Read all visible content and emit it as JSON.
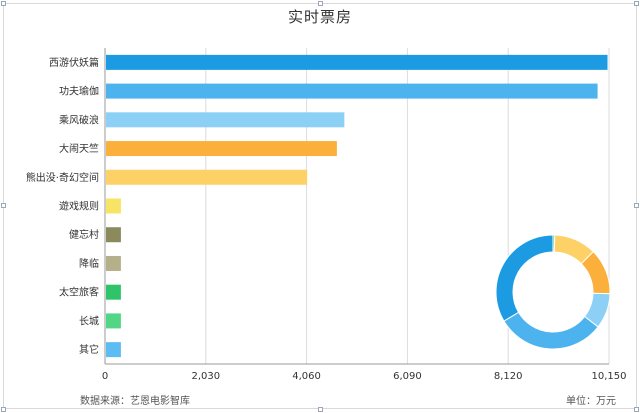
{
  "chart_data": [
    {
      "type": "bar",
      "orientation": "horizontal",
      "title": "实时票房",
      "categories": [
        "西游伏妖篇",
        "功夫瑜伽",
        "乘风破浪",
        "大闹天竺",
        "熊出没·奇幻空间",
        "遊戏规则",
        "健忘村",
        "降临",
        "太空旅客",
        "长城",
        "其它"
      ],
      "values": [
        10100,
        9900,
        4800,
        4650,
        4050,
        300,
        300,
        300,
        300,
        300,
        300
      ],
      "colors": [
        "#1c9be3",
        "#4cb3ef",
        "#8dd0f5",
        "#fbb03b",
        "#fdd166",
        "#f7e464",
        "#8a8a5c",
        "#b5b08a",
        "#2fc46a",
        "#52d686",
        "#5dbcf2"
      ],
      "xlim": [
        0,
        10150
      ],
      "xticks": [
        "0",
        "2,030",
        "4,060",
        "6,090",
        "8,120",
        "10,150"
      ],
      "grid": true
    },
    {
      "type": "pie",
      "style": "donut",
      "values": [
        0.5,
        12,
        13,
        10,
        31,
        33.5
      ],
      "colors": [
        "#2fc46a",
        "#fdd166",
        "#fbb03b",
        "#8dd0f5",
        "#4cb3ef",
        "#1c9be3"
      ]
    }
  ],
  "footer": {
    "source": "数据来源：艺恩电影智库",
    "unit": "单位：万元"
  }
}
